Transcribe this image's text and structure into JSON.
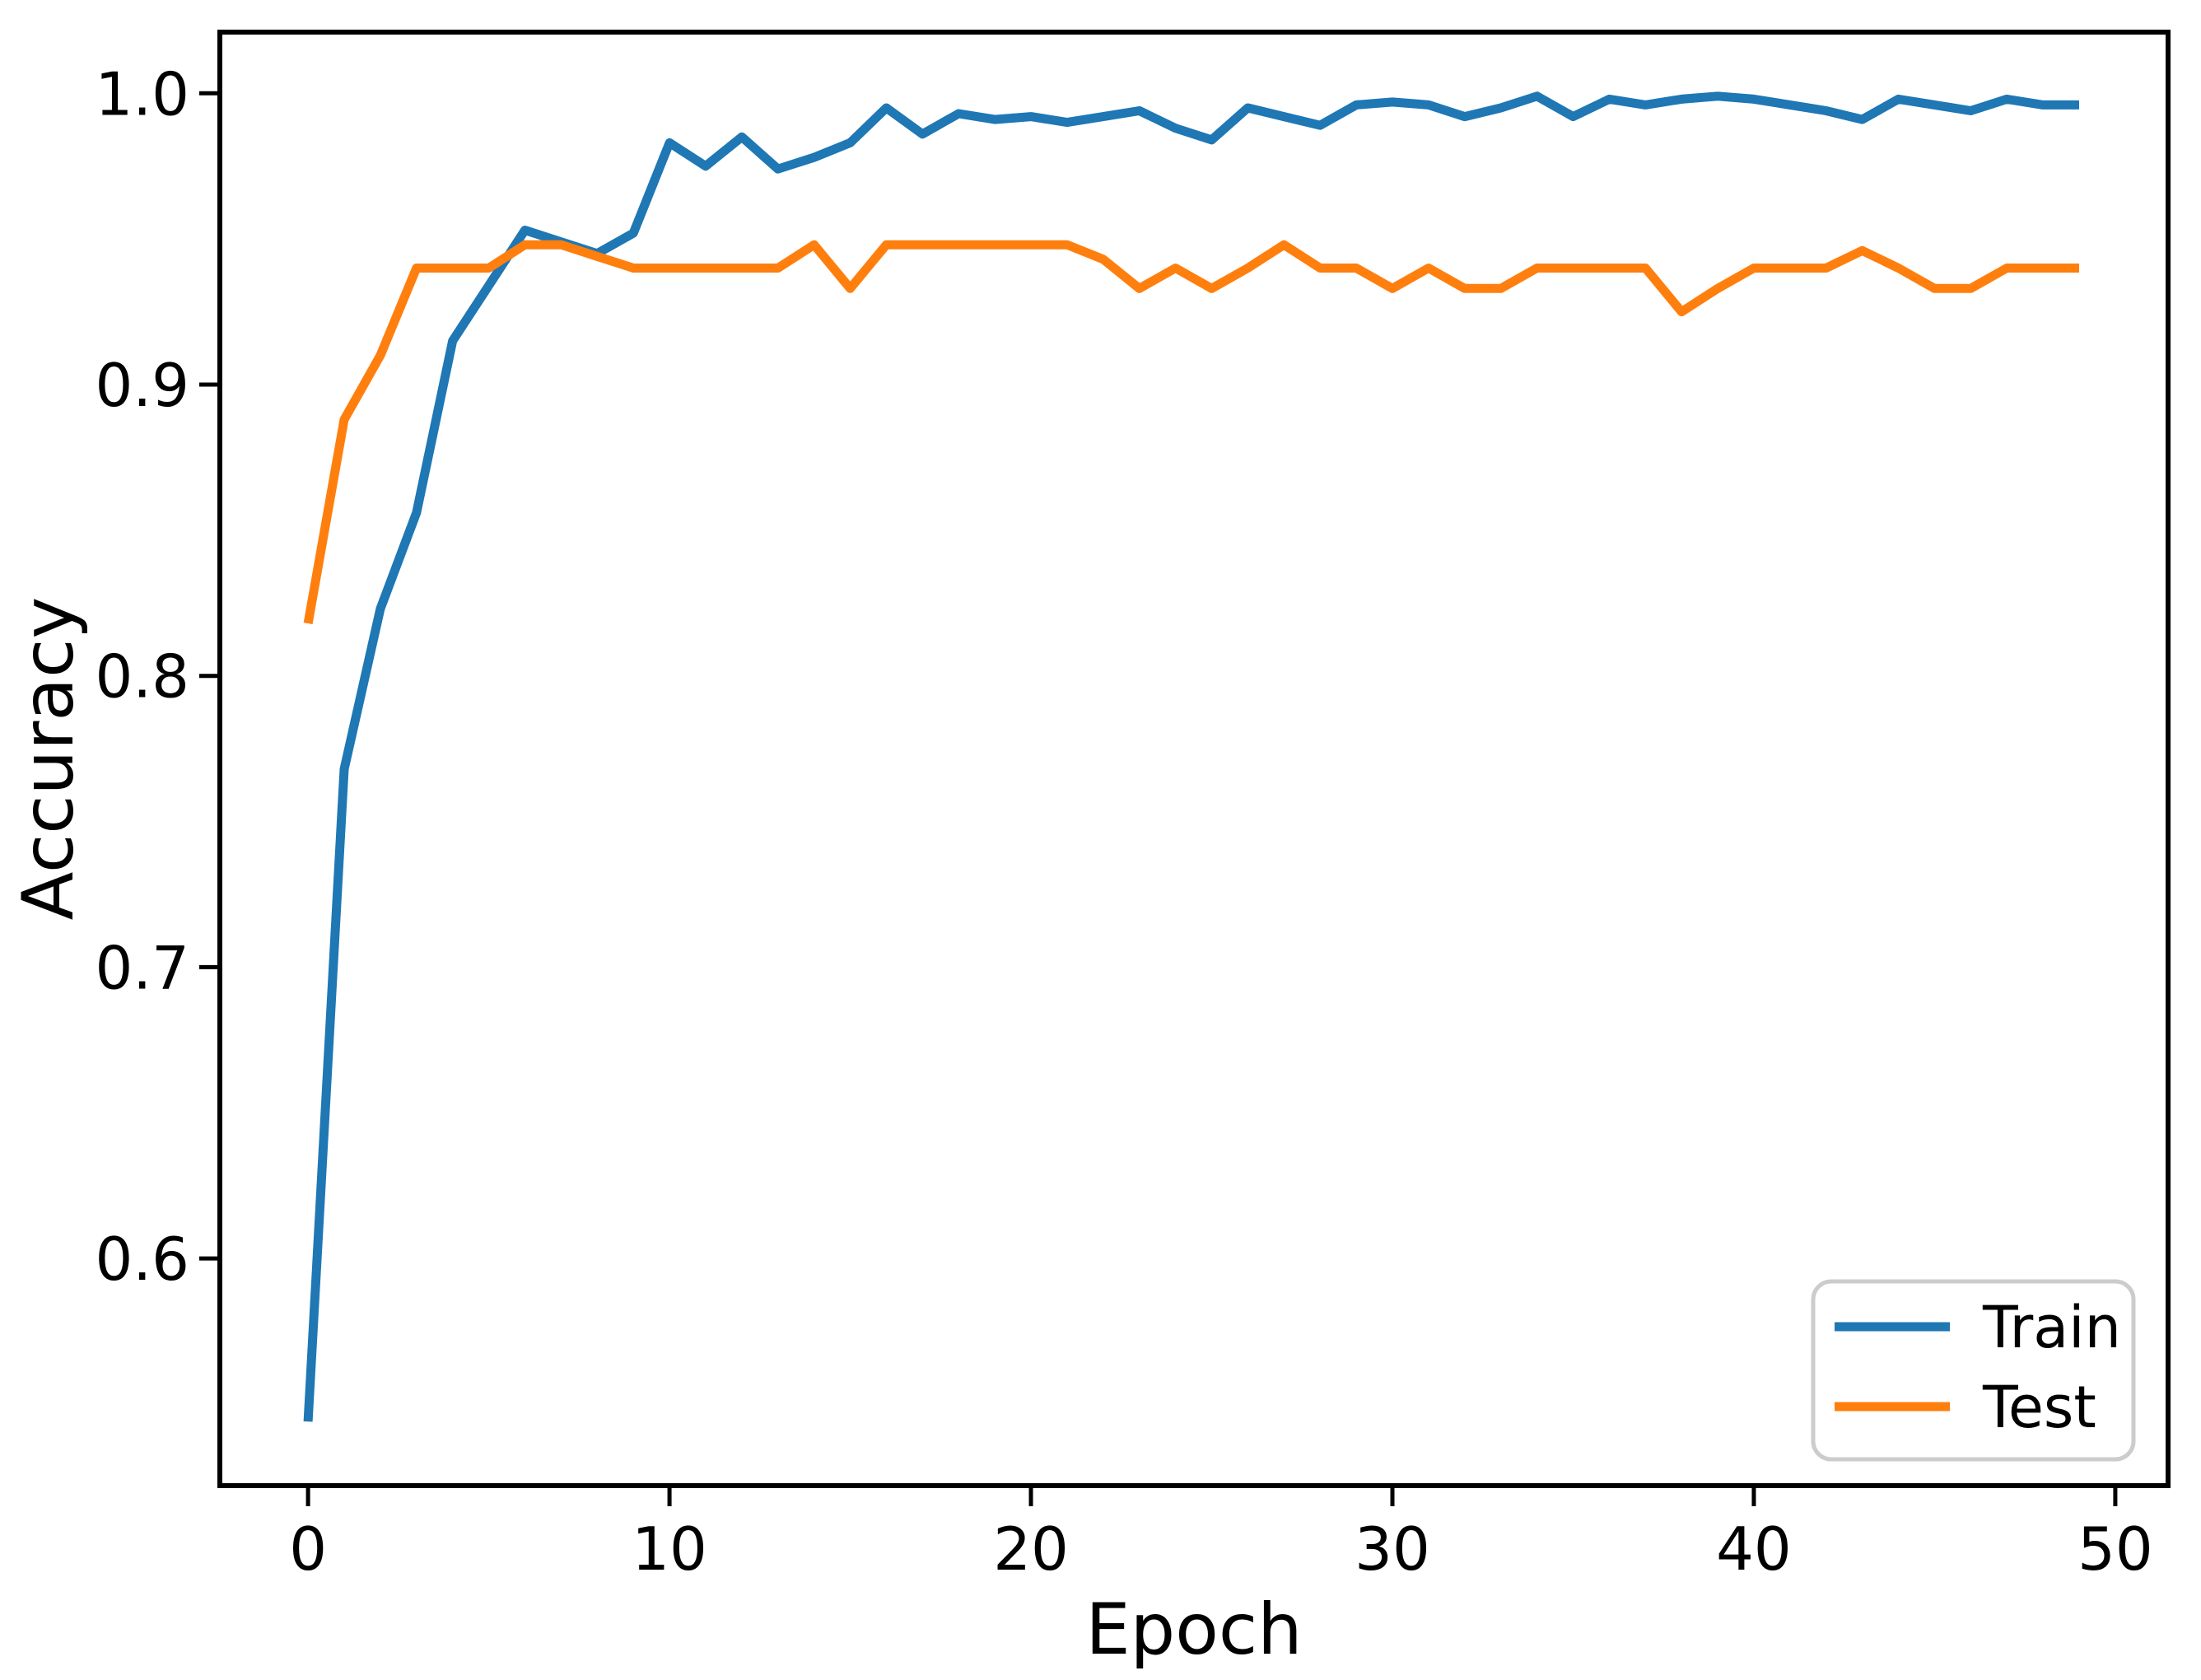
{
  "chart_data": {
    "type": "line",
    "title": "",
    "xlabel": "Epoch",
    "ylabel": "Accuracy",
    "x": [
      0,
      1,
      2,
      3,
      4,
      5,
      6,
      7,
      8,
      9,
      10,
      11,
      12,
      13,
      14,
      15,
      16,
      17,
      18,
      19,
      20,
      21,
      22,
      23,
      24,
      25,
      26,
      27,
      28,
      29,
      30,
      31,
      32,
      33,
      34,
      35,
      36,
      37,
      38,
      39,
      40,
      41,
      42,
      43,
      44,
      45,
      46,
      47,
      48,
      49
    ],
    "series": [
      {
        "name": "Train",
        "color": "#1f77b4",
        "values": [
          0.544,
          0.768,
          0.823,
          0.856,
          0.915,
          0.934,
          0.953,
          0.949,
          0.945,
          0.952,
          0.983,
          0.975,
          0.985,
          0.974,
          0.978,
          0.983,
          0.995,
          0.986,
          0.993,
          0.991,
          0.992,
          0.99,
          0.992,
          0.994,
          0.988,
          0.984,
          0.995,
          0.992,
          0.989,
          0.996,
          0.997,
          0.996,
          0.992,
          0.995,
          0.999,
          0.992,
          0.998,
          0.996,
          0.998,
          0.999,
          0.998,
          0.996,
          0.994,
          0.991,
          0.998,
          0.996,
          0.994,
          0.998,
          0.996,
          0.996
        ]
      },
      {
        "name": "Test",
        "color": "#ff7f0e",
        "values": [
          0.818,
          0.888,
          0.91,
          0.94,
          0.94,
          0.94,
          0.948,
          0.948,
          0.944,
          0.94,
          0.94,
          0.94,
          0.94,
          0.94,
          0.948,
          0.933,
          0.948,
          0.948,
          0.948,
          0.948,
          0.948,
          0.948,
          0.943,
          0.933,
          0.94,
          0.933,
          0.94,
          0.948,
          0.94,
          0.94,
          0.933,
          0.94,
          0.933,
          0.933,
          0.94,
          0.94,
          0.94,
          0.94,
          0.925,
          0.933,
          0.94,
          0.94,
          0.94,
          0.946,
          0.94,
          0.933,
          0.933,
          0.94,
          0.94,
          0.94
        ]
      }
    ],
    "xlim": [
      -2.44,
      51.46
    ],
    "ylim": [
      0.522,
      1.021
    ],
    "xticks": {
      "values": [
        0,
        10,
        20,
        30,
        40,
        50
      ],
      "labels": [
        "0",
        "10",
        "20",
        "30",
        "40",
        "50"
      ]
    },
    "yticks": {
      "values": [
        0.6,
        0.7,
        0.8,
        0.9,
        1.0
      ],
      "labels": [
        "0.6",
        "0.7",
        "0.8",
        "0.9",
        "1.0"
      ]
    },
    "grid": false,
    "legend": {
      "position": "lower right",
      "entries": [
        "Train",
        "Test"
      ]
    },
    "axis_color": "#000000",
    "legend_border_color": "#cccccc",
    "background_color": "#ffffff"
  }
}
